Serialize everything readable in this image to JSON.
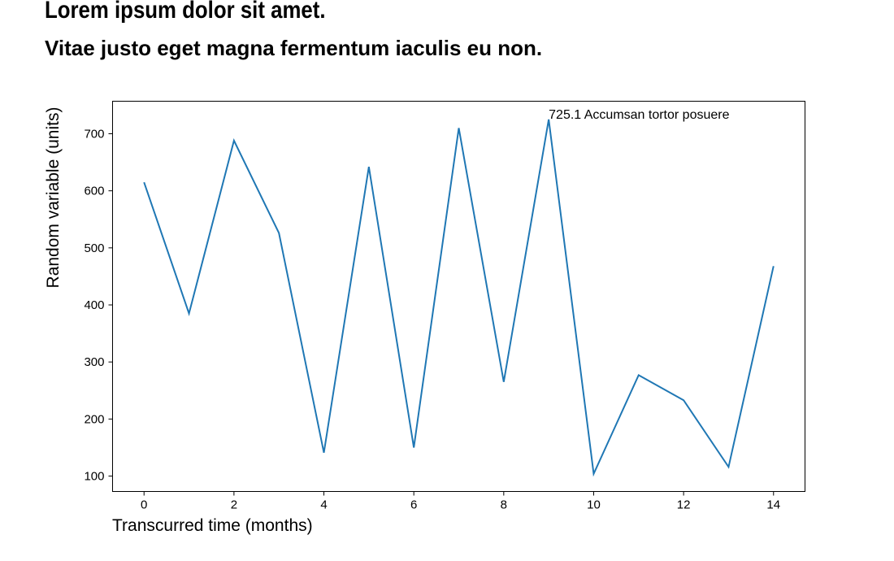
{
  "header": {
    "title": "Lorem ipsum dolor sit amet.",
    "subtitle": "Vitae justo eget magna fermentum iaculis eu non."
  },
  "chart_data": {
    "type": "line",
    "title": "Lorem ipsum dolor sit amet.",
    "subtitle": "Vitae justo eget magna fermentum iaculis eu non.",
    "xlabel": "Transcurred time (months)",
    "ylabel": "Random variable (units)",
    "x": [
      0,
      1,
      2,
      3,
      4,
      5,
      6,
      7,
      8,
      9,
      10,
      11,
      12,
      13,
      14
    ],
    "series": [
      {
        "values": [
          615,
          385,
          688,
          526,
          141,
          642,
          150,
          710,
          265,
          725.1,
          104,
          277,
          233,
          116,
          468
        ],
        "color": "#1f77b4"
      }
    ],
    "xlim": [
      -0.7,
      14.7
    ],
    "ylim": [
      73,
      757
    ],
    "xticks": [
      0,
      2,
      4,
      6,
      8,
      10,
      12,
      14
    ],
    "yticks": [
      100,
      200,
      300,
      400,
      500,
      600,
      700
    ],
    "grid": false,
    "annotation": {
      "x": 9,
      "y": 725.1,
      "text": "725.1 Accumsan tortor posuere"
    }
  }
}
